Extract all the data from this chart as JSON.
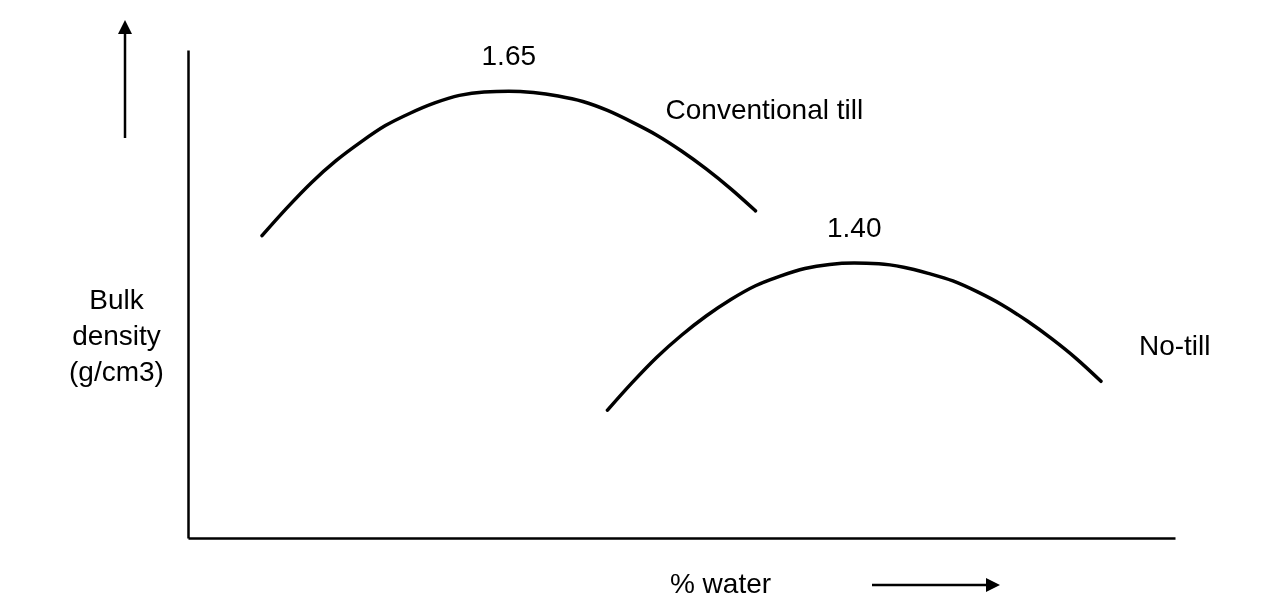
{
  "chart_data": {
    "type": "line",
    "xlabel": "% water",
    "ylabel": "Bulk density (g/cm3)",
    "legend": false,
    "grid": false,
    "ylim": [
      1.0,
      1.71
    ],
    "categories": [
      null,
      null,
      null,
      null,
      null,
      null,
      null,
      null,
      null,
      null,
      null,
      null,
      null,
      null,
      null,
      null,
      null,
      null,
      null,
      null,
      null,
      null,
      null,
      null,
      null,
      null,
      null,
      null,
      null,
      null,
      null,
      null,
      null,
      null,
      null,
      null,
      null,
      null,
      null,
      null,
      null
    ],
    "series": [
      {
        "name": "Conventional till",
        "color": "#000000",
        "values": [
          null,
          null,
          null,
          1.44,
          1.48,
          1.517,
          1.549,
          1.576,
          1.6,
          1.618,
          1.633,
          1.644,
          1.649,
          1.65,
          1.648,
          1.643,
          1.635,
          1.622,
          1.605,
          1.586,
          1.563,
          1.537,
          1.508,
          1.476,
          null,
          null,
          null,
          null,
          null,
          null,
          null,
          null,
          null,
          null,
          null,
          null,
          null,
          null,
          null,
          null,
          null
        ],
        "value_labels": [
          null,
          null,
          null,
          null,
          null,
          null,
          null,
          null,
          null,
          null,
          null,
          null,
          null,
          "1.65",
          null,
          null,
          null,
          null,
          null,
          null,
          null,
          null,
          null,
          null,
          null,
          null,
          null,
          null,
          null,
          null,
          null,
          null,
          null,
          null,
          null,
          null,
          null,
          null,
          null,
          null,
          null
        ]
      },
      {
        "name": "No-till",
        "color": "#000000",
        "values": [
          null,
          null,
          null,
          null,
          null,
          null,
          null,
          null,
          null,
          null,
          null,
          null,
          null,
          null,
          null,
          null,
          null,
          1.186,
          1.226,
          1.263,
          1.295,
          1.323,
          1.347,
          1.367,
          1.381,
          1.392,
          1.398,
          1.4,
          1.399,
          1.394,
          1.385,
          1.374,
          1.358,
          1.339,
          1.316,
          1.29,
          1.261,
          1.228,
          null,
          null,
          null
        ],
        "value_labels": [
          null,
          null,
          null,
          null,
          null,
          null,
          null,
          null,
          null,
          null,
          null,
          null,
          null,
          null,
          null,
          null,
          null,
          null,
          null,
          null,
          null,
          null,
          null,
          null,
          null,
          null,
          null,
          "1.40",
          null,
          null,
          null,
          null,
          null,
          null,
          null,
          null,
          null,
          null,
          null,
          null,
          null
        ]
      }
    ]
  }
}
